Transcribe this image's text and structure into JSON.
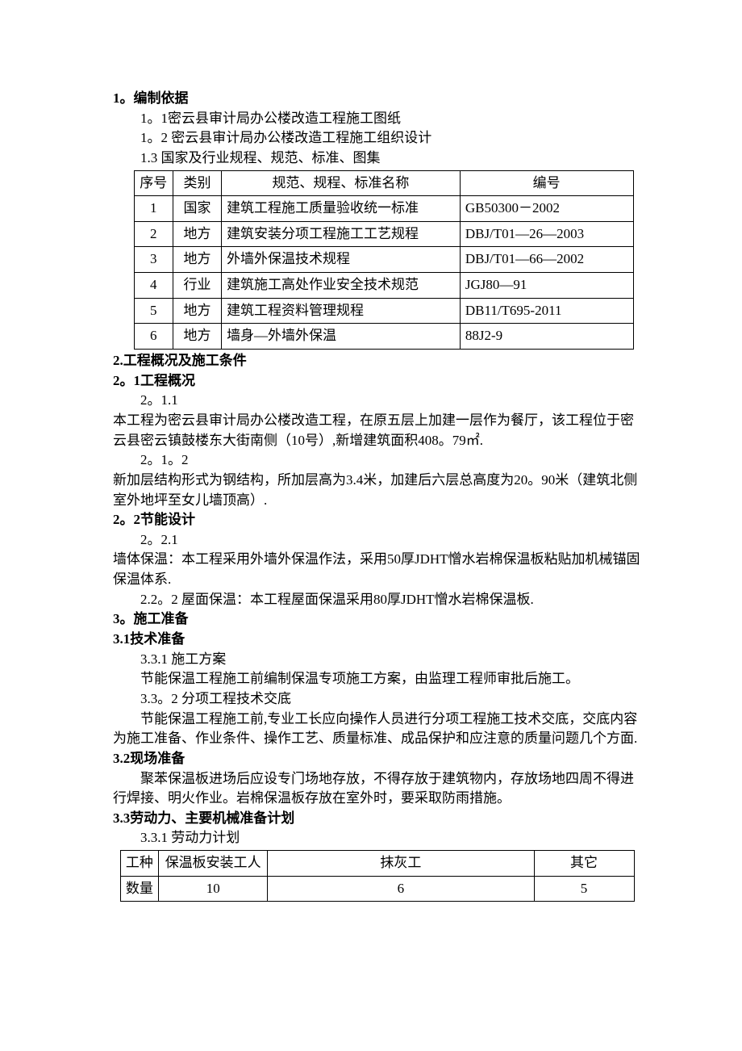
{
  "h1": "1。编制依据",
  "p1": "1。1密云县审计局办公楼改造工程施工图纸",
  "p2": "1。2 密云县审计局办公楼改造工程施工组织设计",
  "p3": "1.3 国家及行业规程、规范、标准、图集",
  "t1": {
    "headers": [
      "序号",
      "类别",
      "规范、规程、标准名称",
      "编号"
    ],
    "rows": [
      [
        "1",
        "国家",
        "建筑工程施工质量验收统一标准",
        "GB50300－2002"
      ],
      [
        "2",
        "地方",
        "建筑安装分项工程施工工艺规程",
        "DBJ/T01—26—2003"
      ],
      [
        "3",
        "地方",
        "外墙外保温技术规程",
        "DBJ/T01—66—2002"
      ],
      [
        "4",
        "行业",
        "建筑施工高处作业安全技术规范",
        "JGJ80—91"
      ],
      [
        "5",
        "地方",
        "建筑工程资料管理规程",
        "DB11/T695-2011"
      ],
      [
        "6",
        "地方",
        "墙身—外墙外保温",
        "88J2-9"
      ]
    ]
  },
  "h2": "2.工程概况及施工条件",
  "h2_1": "2。1工程概况",
  "p211a": "2。1.1",
  "p211b": "本工程为密云县审计局办公楼改造工程，在原五层上加建一层作为餐厅，该工程位于密云县密云镇鼓楼东大街南侧（10号）,新增建筑面积408。79㎡.",
  "p212a": "2。1。2",
  "p212b": "新加层结构形式为钢结构，所加层高为3.4米，加建后六层总高度为20。90米（建筑北侧室外地坪至女儿墙顶高）.",
  "h2_2": "2。2节能设计",
  "p221a": "2。2.1",
  "p221b": "墙体保温：本工程采用外墙外保温作法，采用50厚JDHT憎水岩棉保温板粘贴加机械锚固保温体系.",
  "p222": "2.2。2 屋面保温：本工程屋面保温采用80厚JDHT憎水岩棉保温板.",
  "h3": "3。施工准备",
  "h3_1": "3.1技术准备",
  "p331": "3.3.1 施工方案",
  "p331b": "节能保温工程施工前编制保温专项施工方案，由监理工程师审批后施工。",
  "p332": "3.3。2 分项工程技术交底",
  "p332b": "节能保温工程施工前,专业工长应向操作人员进行分项工程施工技术交底，交底内容为施工准备、作业条件、操作工艺、质量标准、成品保护和应注意的质量问题几个方面.",
  "h3_2": "3.2现场准备",
  "p32": "聚苯保温板进场后应设专门场地存放，不得存放于建筑物内，存放场地四周不得进行焊接、明火作业。岩棉保温板存放在室外时，要采取防雨措施。",
  "h3_3": "3.3劳动力、主要机械准备计划",
  "p33": "3.3.1 劳动力计划",
  "t2": {
    "headers": [
      "工种",
      "保温板安装工人",
      "抹灰工",
      "其它"
    ],
    "rows": [
      [
        "数量",
        "10",
        "6",
        "5"
      ]
    ]
  }
}
